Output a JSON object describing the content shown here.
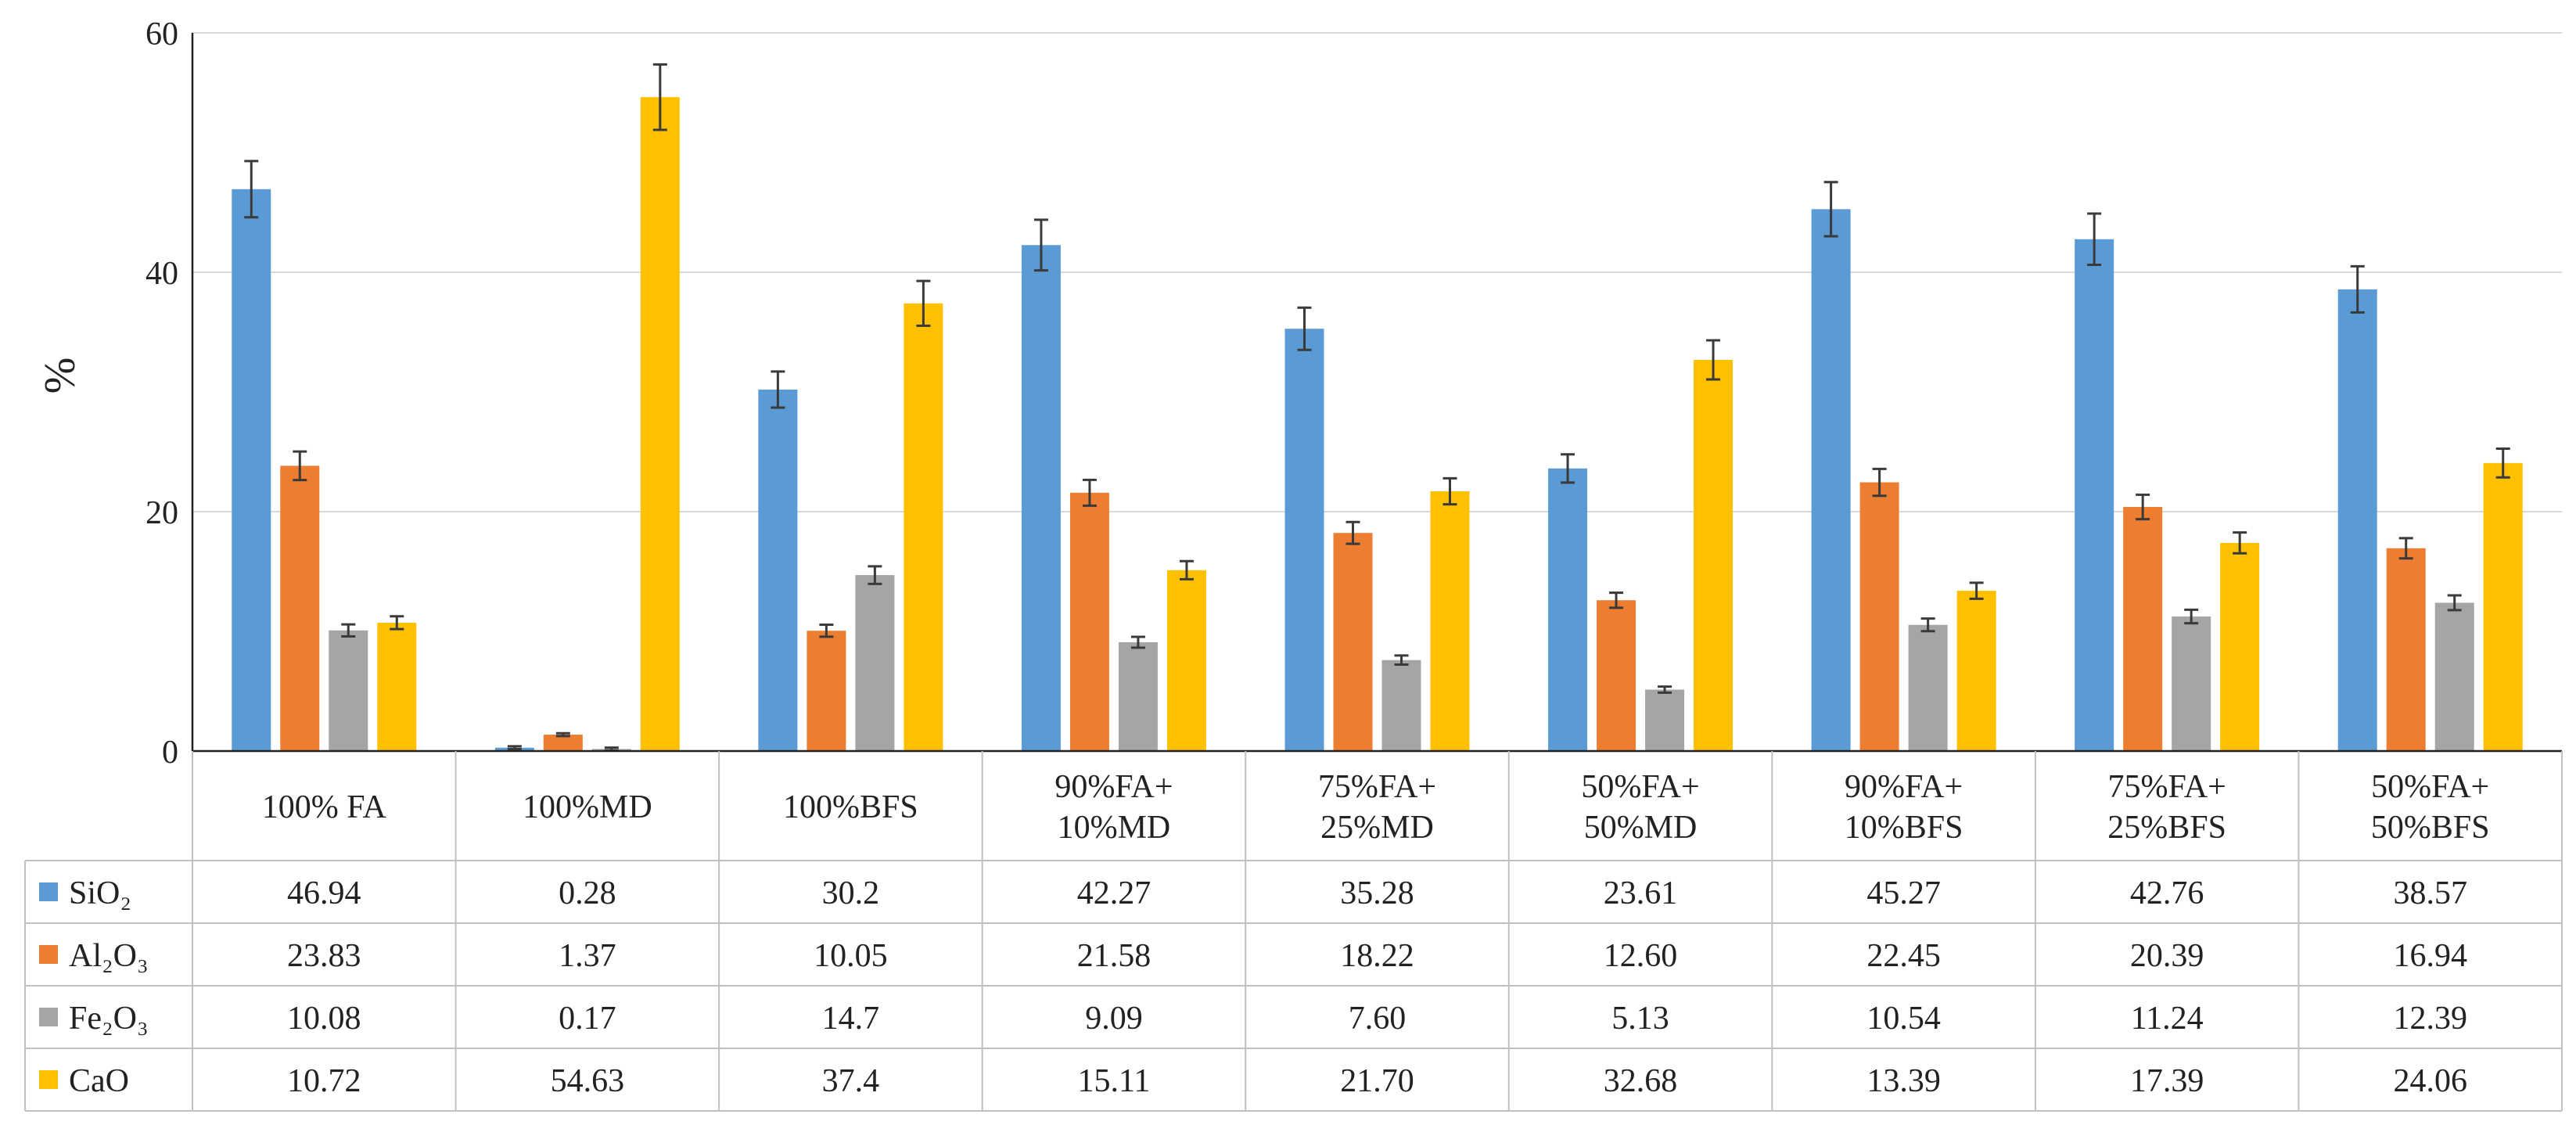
{
  "chart_data": {
    "type": "bar",
    "ylabel": "%",
    "ylim": [
      0,
      60
    ],
    "yticks": [
      0,
      20,
      40,
      60
    ],
    "grid": true,
    "legend_position": "data-table-rows",
    "categories": [
      [
        "100% FA"
      ],
      [
        "100%MD"
      ],
      [
        "100%BFS"
      ],
      [
        "90%FA+",
        "10%MD"
      ],
      [
        "75%FA+",
        "25%MD"
      ],
      [
        "50%FA+",
        "50%MD"
      ],
      [
        "90%FA+",
        "10%BFS"
      ],
      [
        "75%FA+",
        "25%BFS"
      ],
      [
        "50%FA+",
        "50%BFS"
      ]
    ],
    "series": [
      {
        "name": "SiO₂",
        "color": "#5b9bd5",
        "values": [
          46.94,
          0.28,
          30.2,
          42.27,
          35.28,
          23.61,
          45.27,
          42.76,
          38.57
        ],
        "labels": [
          "46.94",
          "0.28",
          "30.2",
          "42.27",
          "35.28",
          "23.61",
          "45.27",
          "42.76",
          "38.57"
        ]
      },
      {
        "name": "Al₂O₃",
        "color": "#ed7d31",
        "values": [
          23.83,
          1.37,
          10.05,
          21.58,
          18.22,
          12.6,
          22.45,
          20.39,
          16.94
        ],
        "labels": [
          "23.83",
          "1.37",
          "10.05",
          "21.58",
          "18.22",
          "12.60",
          "22.45",
          "20.39",
          "16.94"
        ]
      },
      {
        "name": "Fe₂O₃",
        "color": "#a5a5a5",
        "values": [
          10.08,
          0.17,
          14.7,
          9.09,
          7.6,
          5.13,
          10.54,
          11.24,
          12.39
        ],
        "labels": [
          "10.08",
          "0.17",
          "14.7",
          "9.09",
          "7.60",
          "5.13",
          "10.54",
          "11.24",
          "12.39"
        ]
      },
      {
        "name": "CaO",
        "color": "#ffc000",
        "values": [
          10.72,
          54.63,
          37.4,
          15.11,
          21.7,
          32.68,
          13.39,
          17.39,
          24.06
        ],
        "labels": [
          "10.72",
          "54.63",
          "37.4",
          "15.11",
          "21.70",
          "32.68",
          "13.39",
          "17.39",
          "24.06"
        ]
      }
    ],
    "error_fraction": 0.05
  }
}
